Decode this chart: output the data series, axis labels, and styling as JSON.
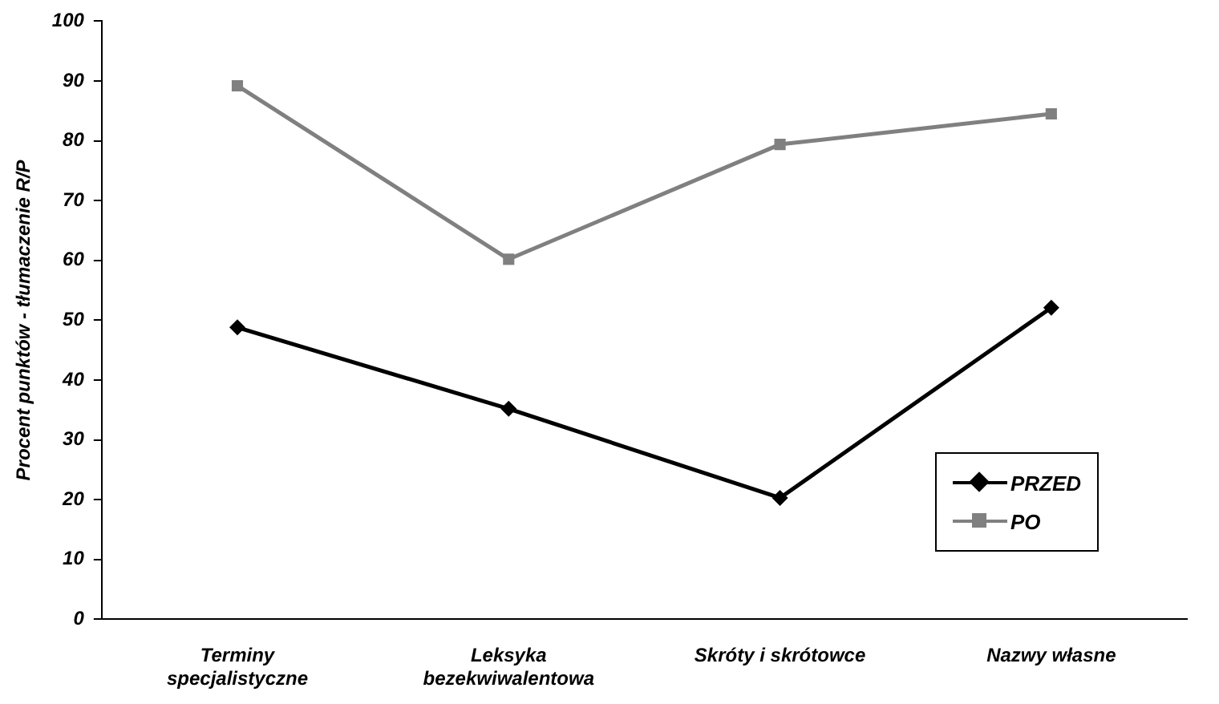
{
  "chart_data": {
    "type": "line",
    "ylabel": "Procent punktów - tłumaczenie R/P",
    "categories": [
      "Terminy specjalistyczne",
      "Leksyka bezekwiwalentowa",
      "Skróty i skrótowce",
      "Nazwy własne"
    ],
    "series": [
      {
        "name": "PRZED",
        "color": "#000000",
        "marker": "diamond",
        "values": [
          48.8,
          35.2,
          20.3,
          52.1
        ]
      },
      {
        "name": "PO",
        "color": "#808080",
        "marker": "square",
        "values": [
          89.2,
          60.2,
          79.4,
          84.5
        ]
      }
    ],
    "ylim": [
      0,
      100
    ],
    "yticks": [
      0,
      10,
      20,
      30,
      40,
      50,
      60,
      70,
      80,
      90,
      100
    ],
    "grid": false,
    "legend": "bottom right",
    "line_style": "solid"
  }
}
